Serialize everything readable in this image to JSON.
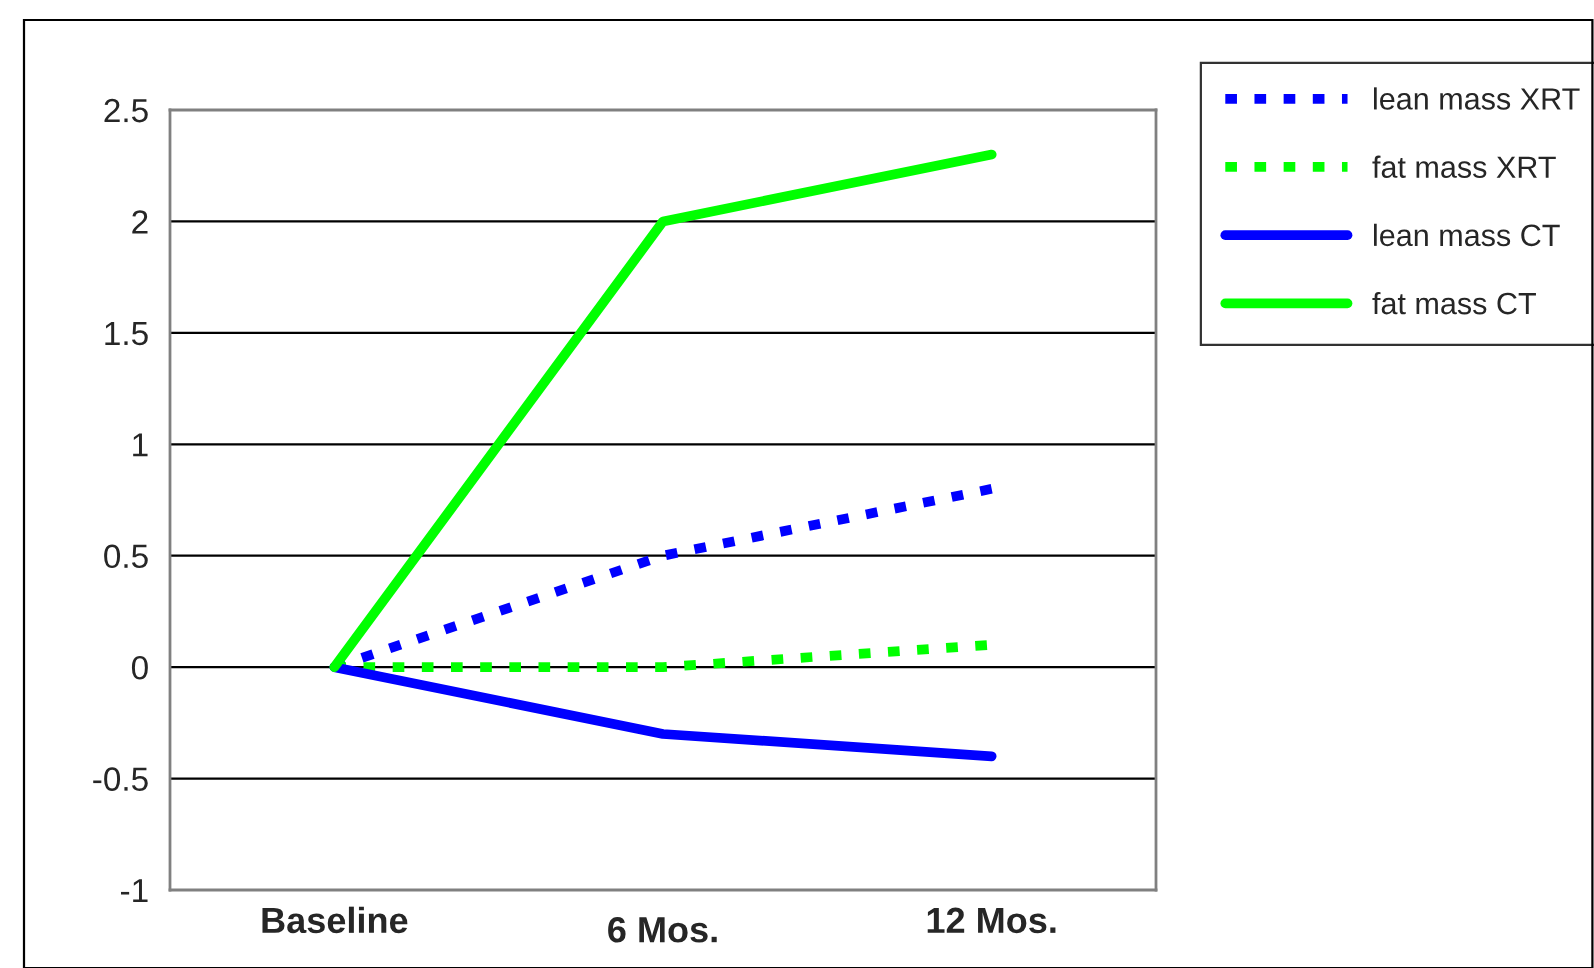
{
  "chart_data": {
    "type": "line",
    "categories": [
      "Baseline",
      "6 Mos.",
      "12 Mos."
    ],
    "series": [
      {
        "name": "lean mass XRT",
        "color": "#0000ff",
        "line_style": "dotted",
        "values": [
          0,
          0.5,
          0.8
        ]
      },
      {
        "name": "fat mass XRT",
        "color": "#00ff00",
        "line_style": "dotted",
        "values": [
          0,
          0,
          0.1
        ]
      },
      {
        "name": "lean mass CT",
        "color": "#0000ff",
        "line_style": "solid",
        "values": [
          0,
          -0.3,
          -0.4
        ]
      },
      {
        "name": "fat mass CT",
        "color": "#00ff00",
        "line_style": "solid",
        "values": [
          0,
          2,
          2.3
        ]
      }
    ],
    "ylim": [
      -1,
      2.5
    ],
    "yticks": [
      -1,
      -0.5,
      0,
      0.5,
      1,
      1.5,
      2,
      2.5
    ],
    "grid": "y",
    "legend": "right",
    "marker": "none"
  }
}
